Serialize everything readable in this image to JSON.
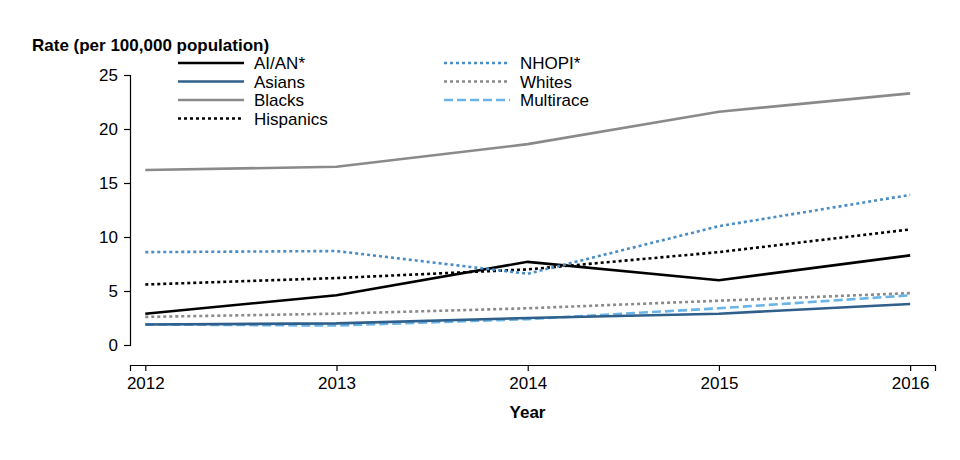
{
  "chart_data": {
    "type": "line",
    "xlabel": "Year",
    "ylabel": "Rate (per 100,000 population)",
    "x": [
      2012,
      2013,
      2014,
      2015,
      2016
    ],
    "xlim": [
      2011.92,
      2016.13
    ],
    "xticks": [
      2012,
      2013,
      2014,
      2015,
      2016
    ],
    "ylim": [
      0,
      25
    ],
    "yticks": [
      0,
      5,
      10,
      15,
      20,
      25
    ],
    "grid": false,
    "legend": "top-left",
    "series": [
      {
        "name": "AI/AN*",
        "color": "#000000",
        "line_style": "solid",
        "values": [
          2.9,
          4.6,
          7.7,
          6.0,
          8.3
        ]
      },
      {
        "name": "Asians",
        "color": "#2f5f8a",
        "line_style": "solid",
        "values": [
          1.9,
          2.0,
          2.5,
          2.9,
          3.8
        ]
      },
      {
        "name": "Blacks",
        "color": "#8a8a8a",
        "line_style": "solid",
        "values": [
          16.2,
          16.5,
          18.6,
          21.6,
          23.3
        ]
      },
      {
        "name": "Hispanics",
        "color": "#000000",
        "line_style": "dotted",
        "values": [
          5.6,
          6.2,
          7.0,
          8.6,
          10.7
        ]
      },
      {
        "name": "NHOPI*",
        "color": "#4a8cc4",
        "line_style": "dotted",
        "values": [
          8.6,
          8.7,
          6.6,
          11.0,
          13.9
        ]
      },
      {
        "name": "Whites",
        "color": "#8a8a8a",
        "line_style": "dotted",
        "values": [
          2.6,
          2.9,
          3.4,
          4.1,
          4.8
        ]
      },
      {
        "name": "Multirace",
        "color": "#6ab4e8",
        "line_style": "dashed",
        "values": [
          1.9,
          1.8,
          2.4,
          3.4,
          4.6
        ]
      }
    ]
  }
}
